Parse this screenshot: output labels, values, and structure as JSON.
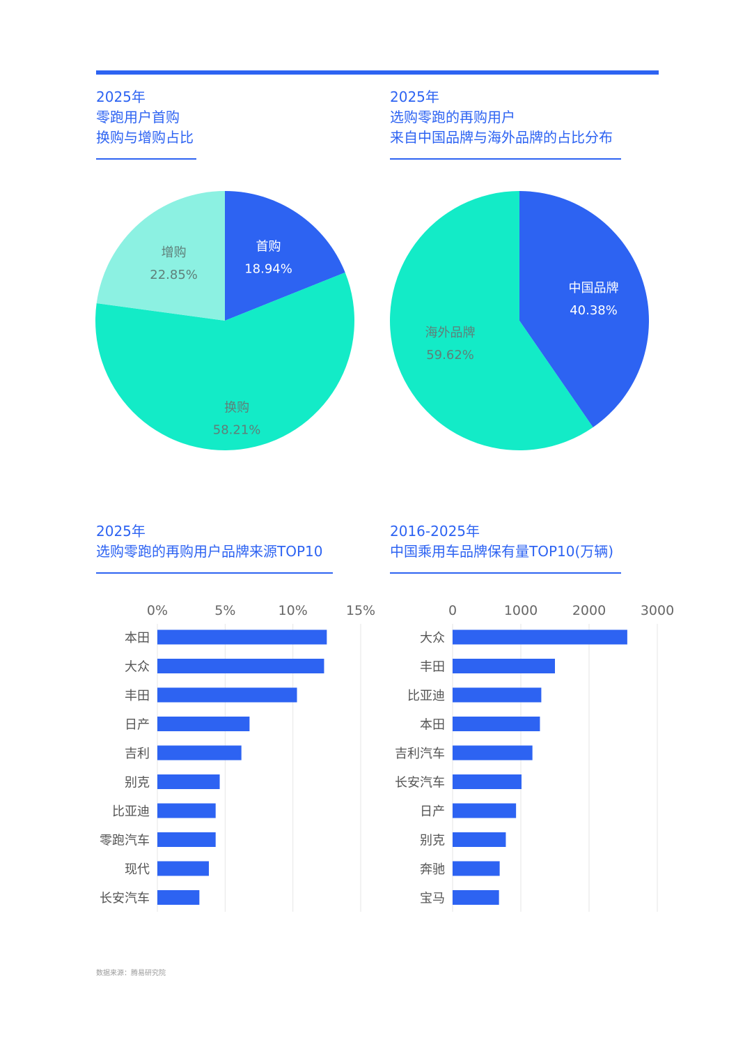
{
  "headings": {
    "h1": {
      "line1": "2025年",
      "line2": "零跑用户首购",
      "line3": "换购与增购占比"
    },
    "h2": {
      "line1": "2025年",
      "line2": "选购零跑的再购用户",
      "line3": "来自中国品牌与海外品牌的占比分布"
    },
    "h3": {
      "line1": "2025年",
      "line2": "选购零跑的再购用户品牌来源TOP10"
    },
    "h4": {
      "line1": "2016-2025年",
      "line2": "中国乘用车品牌保有量TOP10(万辆)"
    }
  },
  "source": "数据来源：腾易研究院",
  "colors": {
    "accent": "#2d63f2",
    "teal": "#13ebc7",
    "light_teal": "#8cf1e2",
    "bar": "#2d63f2"
  },
  "chart_data": [
    {
      "type": "pie",
      "labels": [
        "首购",
        "换购",
        "增购"
      ],
      "values": [
        18.94,
        58.21,
        22.85
      ],
      "value_labels": [
        "18.94%",
        "58.21%",
        "22.85%"
      ],
      "colors": [
        "#2d63f2",
        "#13ebc7",
        "#8cf1e2"
      ]
    },
    {
      "type": "pie",
      "labels": [
        "中国品牌",
        "海外品牌"
      ],
      "values": [
        40.38,
        59.62
      ],
      "value_labels": [
        "40.38%",
        "59.62%"
      ],
      "colors": [
        "#2d63f2",
        "#13ebc7"
      ]
    },
    {
      "type": "bar",
      "orientation": "horizontal",
      "categories": [
        "本田",
        "大众",
        "丰田",
        "日产",
        "吉利",
        "别克",
        "比亚迪",
        "零跑汽车",
        "现代",
        "长安汽车"
      ],
      "values": [
        12.5,
        12.3,
        10.3,
        6.8,
        6.2,
        4.6,
        4.3,
        4.3,
        3.8,
        3.1
      ],
      "xlim": [
        0,
        15
      ],
      "ticks": [
        0,
        5,
        10,
        15
      ],
      "tick_labels": [
        "0%",
        "5%",
        "10%",
        "15%"
      ],
      "grid": true
    },
    {
      "type": "bar",
      "orientation": "horizontal",
      "categories": [
        "大众",
        "丰田",
        "比亚迪",
        "本田",
        "吉利汽车",
        "长安汽车",
        "日产",
        "别克",
        "奔驰",
        "宝马"
      ],
      "values": [
        2560,
        1500,
        1300,
        1280,
        1170,
        1010,
        930,
        780,
        690,
        680
      ],
      "xlim": [
        0,
        3000
      ],
      "ticks": [
        0,
        1000,
        2000,
        3000
      ],
      "tick_labels": [
        "0",
        "1000",
        "2000",
        "3000"
      ],
      "grid": true
    }
  ]
}
